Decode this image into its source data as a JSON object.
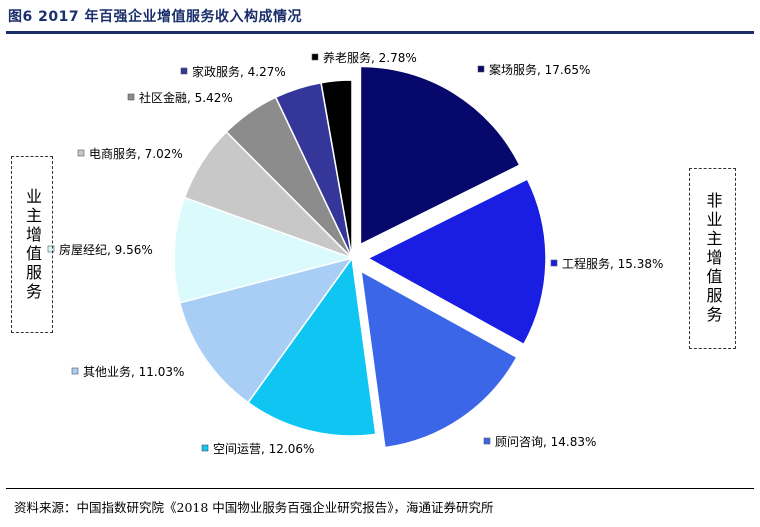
{
  "title": "图6  2017 年百强企业增值服务收入构成情况",
  "source": "资料来源：中国指数研究院《2018 中国物业服务百强企业研究报告》，海通证券研究所",
  "groups": {
    "left": "业主增值服务",
    "right": "非业主增值服务"
  },
  "chart_data": {
    "type": "pie",
    "unit": "%",
    "slices": [
      {
        "label": "案场服务",
        "value": 17.65,
        "display": "17.65%",
        "color": "#07086b",
        "exploded": true
      },
      {
        "label": "工程服务",
        "value": 15.38,
        "display": "15.38%",
        "color": "#1a1ee3",
        "exploded": true
      },
      {
        "label": "顾问咨询",
        "value": 14.83,
        "display": "14.83%",
        "color": "#3b66e8",
        "exploded": true
      },
      {
        "label": "空间运营",
        "value": 12.06,
        "display": "12.06%",
        "color": "#0fc5f2",
        "exploded": false
      },
      {
        "label": "其他业务",
        "value": 11.03,
        "display": "11.03%",
        "color": "#a8cef5",
        "exploded": false
      },
      {
        "label": "房屋经纪",
        "value": 9.56,
        "display": "9.56%",
        "color": "#dafafc",
        "exploded": false
      },
      {
        "label": "电商服务",
        "value": 7.02,
        "display": "7.02%",
        "color": "#c8c8c8",
        "exploded": false
      },
      {
        "label": "社区金融",
        "value": 5.42,
        "display": "5.42%",
        "color": "#8c8c8c",
        "exploded": false
      },
      {
        "label": "家政服务",
        "value": 4.27,
        "display": "4.27%",
        "color": "#343799",
        "exploded": false
      },
      {
        "label": "养老服务",
        "value": 2.78,
        "display": "2.78%",
        "color": "#000000",
        "exploded": false
      }
    ]
  }
}
